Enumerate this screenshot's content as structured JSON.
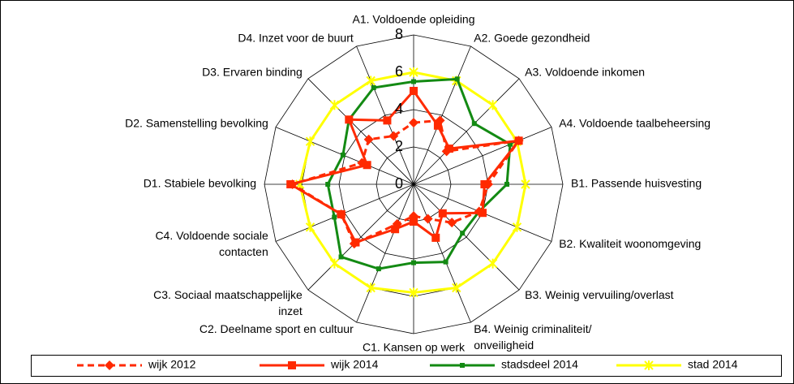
{
  "chart_data": {
    "type": "radar",
    "categories": [
      "A1. Voldoende opleiding",
      "A2. Goede gezondheid",
      "A3. Voldoende inkomen",
      "A4. Voldoende taalbeheersing",
      "B1. Passende huisvesting",
      "B2. Kwaliteit woonomgeving",
      "B3. Weinig vervuiling/overlast",
      "B4. Weinig criminaliteit/\nonveiligheid",
      "C1. Kansen op werk",
      "C2. Deelname sport en cultuur",
      "C3. Sociaal maatschappelijke\ninzet",
      "C4. Voldoende sociale\ncontacten",
      "D1. Stabiele bevolking",
      "D2. Samenstelling bevolking",
      "D3. Ervaren binding",
      "D4. Inzet voor de buurt"
    ],
    "rlim": [
      0,
      8
    ],
    "rticks": [
      0,
      2,
      4,
      6,
      8
    ],
    "grid": true,
    "legend": "bottom",
    "series": [
      {
        "name": "wijk 2012",
        "color": "#ff2a00",
        "dashed": true,
        "marker": "diamond",
        "values": [
          3.3,
          3.7,
          2.5,
          6.1,
          4.0,
          3.8,
          2.9,
          2.0,
          1.7,
          2.3,
          4.5,
          4.2,
          6.5,
          3.0,
          3.4,
          2.8
        ]
      },
      {
        "name": "wijk 2014",
        "color": "#ff2a00",
        "dashed": false,
        "marker": "square",
        "values": [
          5.0,
          3.4,
          2.7,
          6.1,
          3.8,
          4.0,
          2.2,
          3.1,
          2.0,
          2.6,
          4.4,
          4.2,
          6.6,
          2.7,
          4.9,
          3.7
        ]
      },
      {
        "name": "stadsdeel 2014",
        "color": "#138a13",
        "dashed": false,
        "marker": "smallsquare",
        "values": [
          5.5,
          6.1,
          4.6,
          5.6,
          5.0,
          3.8,
          3.7,
          4.5,
          4.2,
          4.9,
          5.5,
          4.6,
          4.6,
          4.1,
          4.9,
          5.6
        ]
      },
      {
        "name": "stad 2014",
        "color": "#ffff00",
        "dashed": false,
        "marker": "star",
        "values": [
          6,
          6,
          6,
          6,
          6,
          6,
          6,
          6,
          5.8,
          6,
          6,
          6,
          6.1,
          6,
          6,
          6
        ]
      }
    ]
  }
}
